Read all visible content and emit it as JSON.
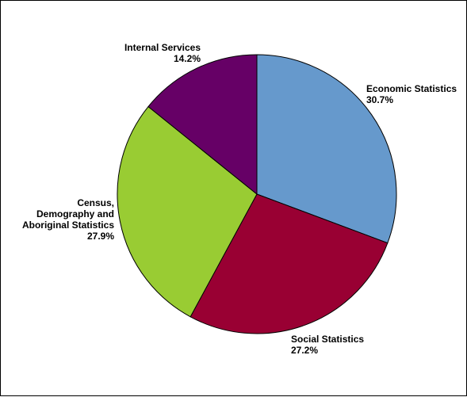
{
  "chart_data": {
    "type": "pie",
    "slices": [
      {
        "label": "Economic Statistics",
        "value": 30.7,
        "value_label": "30.7%",
        "color": "#6699CC"
      },
      {
        "label": "Social Statistics",
        "value": 27.2,
        "value_label": "27.2%",
        "color": "#990033"
      },
      {
        "label": "Census,\nDemography and\nAboriginal Statistics",
        "value": 27.9,
        "value_label": "27.9%",
        "color": "#99CC33"
      },
      {
        "label": "Internal Services",
        "value": 14.2,
        "value_label": "14.2%",
        "color": "#660066"
      }
    ],
    "start_angle": "12 o'clock",
    "direction": "clockwise",
    "legend": "none"
  }
}
